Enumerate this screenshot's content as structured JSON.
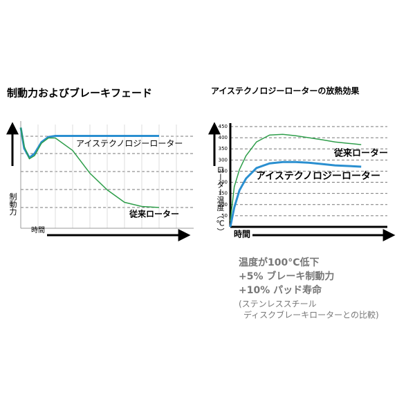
{
  "chart_data": [
    {
      "type": "line",
      "title": "制動力およびブレーキフェード",
      "y_label": "制動力",
      "x_label": "時間",
      "x": [
        0,
        0.2,
        0.5,
        0.8,
        1.2,
        1.6,
        2,
        3,
        4,
        5,
        6,
        7,
        8
      ],
      "xlim": [
        0,
        10
      ],
      "ylim": [
        0,
        100
      ],
      "series": [
        {
          "name": "アイステクノロジーローター",
          "color": "#2a8fd0",
          "values": [
            97,
            77,
            68,
            72,
            83,
            88,
            89,
            89,
            89,
            89,
            89,
            89,
            89
          ]
        },
        {
          "name": "従来ローター",
          "color": "#2e9e4a",
          "values": [
            97,
            79,
            67,
            70,
            82,
            87,
            87,
            75,
            53,
            37,
            25,
            21,
            20
          ]
        }
      ]
    },
    {
      "type": "line",
      "title": "アイステクノロジーローターの放熱効果",
      "y_label": "ローター温度（℃）",
      "x_label": "時間",
      "x": [
        0,
        0.3,
        0.7,
        1.2,
        2,
        3,
        4,
        5,
        6,
        7,
        8,
        9,
        10
      ],
      "xlim": [
        0,
        12
      ],
      "ylim": [
        0,
        450
      ],
      "yticks": [
        50,
        100,
        150,
        200,
        250,
        300,
        350,
        400,
        450
      ],
      "grid": true,
      "series": [
        {
          "name": "従来ローター",
          "color": "#2e9e4a",
          "values": [
            25,
            180,
            257,
            319,
            381,
            412,
            415,
            409,
            400,
            391,
            381,
            375,
            369
          ]
        },
        {
          "name": "アイステクノロジーローター",
          "color": "#2a8fd0",
          "values": [
            0,
            87,
            164,
            217,
            264,
            285,
            291,
            291,
            288,
            282,
            276,
            273,
            270
          ]
        }
      ],
      "annotations": [
        "温度が100°C低下",
        "+5% ブレーキ制動力",
        "+10% パッド寿命",
        "(ステンレススチール",
        "ディスクブレーキローターとの比較)"
      ]
    }
  ]
}
